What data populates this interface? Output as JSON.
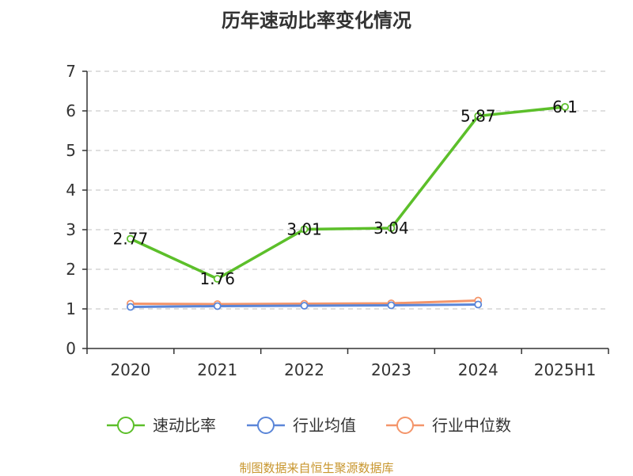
{
  "title": "历年速动比率变化情况",
  "source": "制图数据来自恒生聚源数据库",
  "chart_data": {
    "type": "line",
    "title": "历年速动比率变化情况",
    "categories": [
      "2020",
      "2021",
      "2022",
      "2023",
      "2024",
      "2025H1"
    ],
    "ylim": [
      0,
      7
    ],
    "yticks": [
      0,
      1,
      2,
      3,
      4,
      5,
      6,
      7
    ],
    "grid": true,
    "legend_position": "bottom",
    "series": [
      {
        "name": "速动比率",
        "color": "#5cbf2a",
        "values": [
          2.77,
          1.76,
          3.01,
          3.04,
          5.87,
          6.1
        ],
        "labels": [
          "2.77",
          "1.76",
          "3.01",
          "3.04",
          "5.87",
          "6.1"
        ]
      },
      {
        "name": "行业均值",
        "color": "#5b86d8",
        "values": [
          1.05,
          1.07,
          1.08,
          1.09,
          1.11,
          null
        ]
      },
      {
        "name": "行业中位数",
        "color": "#f4956a",
        "values": [
          1.13,
          1.12,
          1.13,
          1.14,
          1.21,
          null
        ]
      }
    ]
  }
}
